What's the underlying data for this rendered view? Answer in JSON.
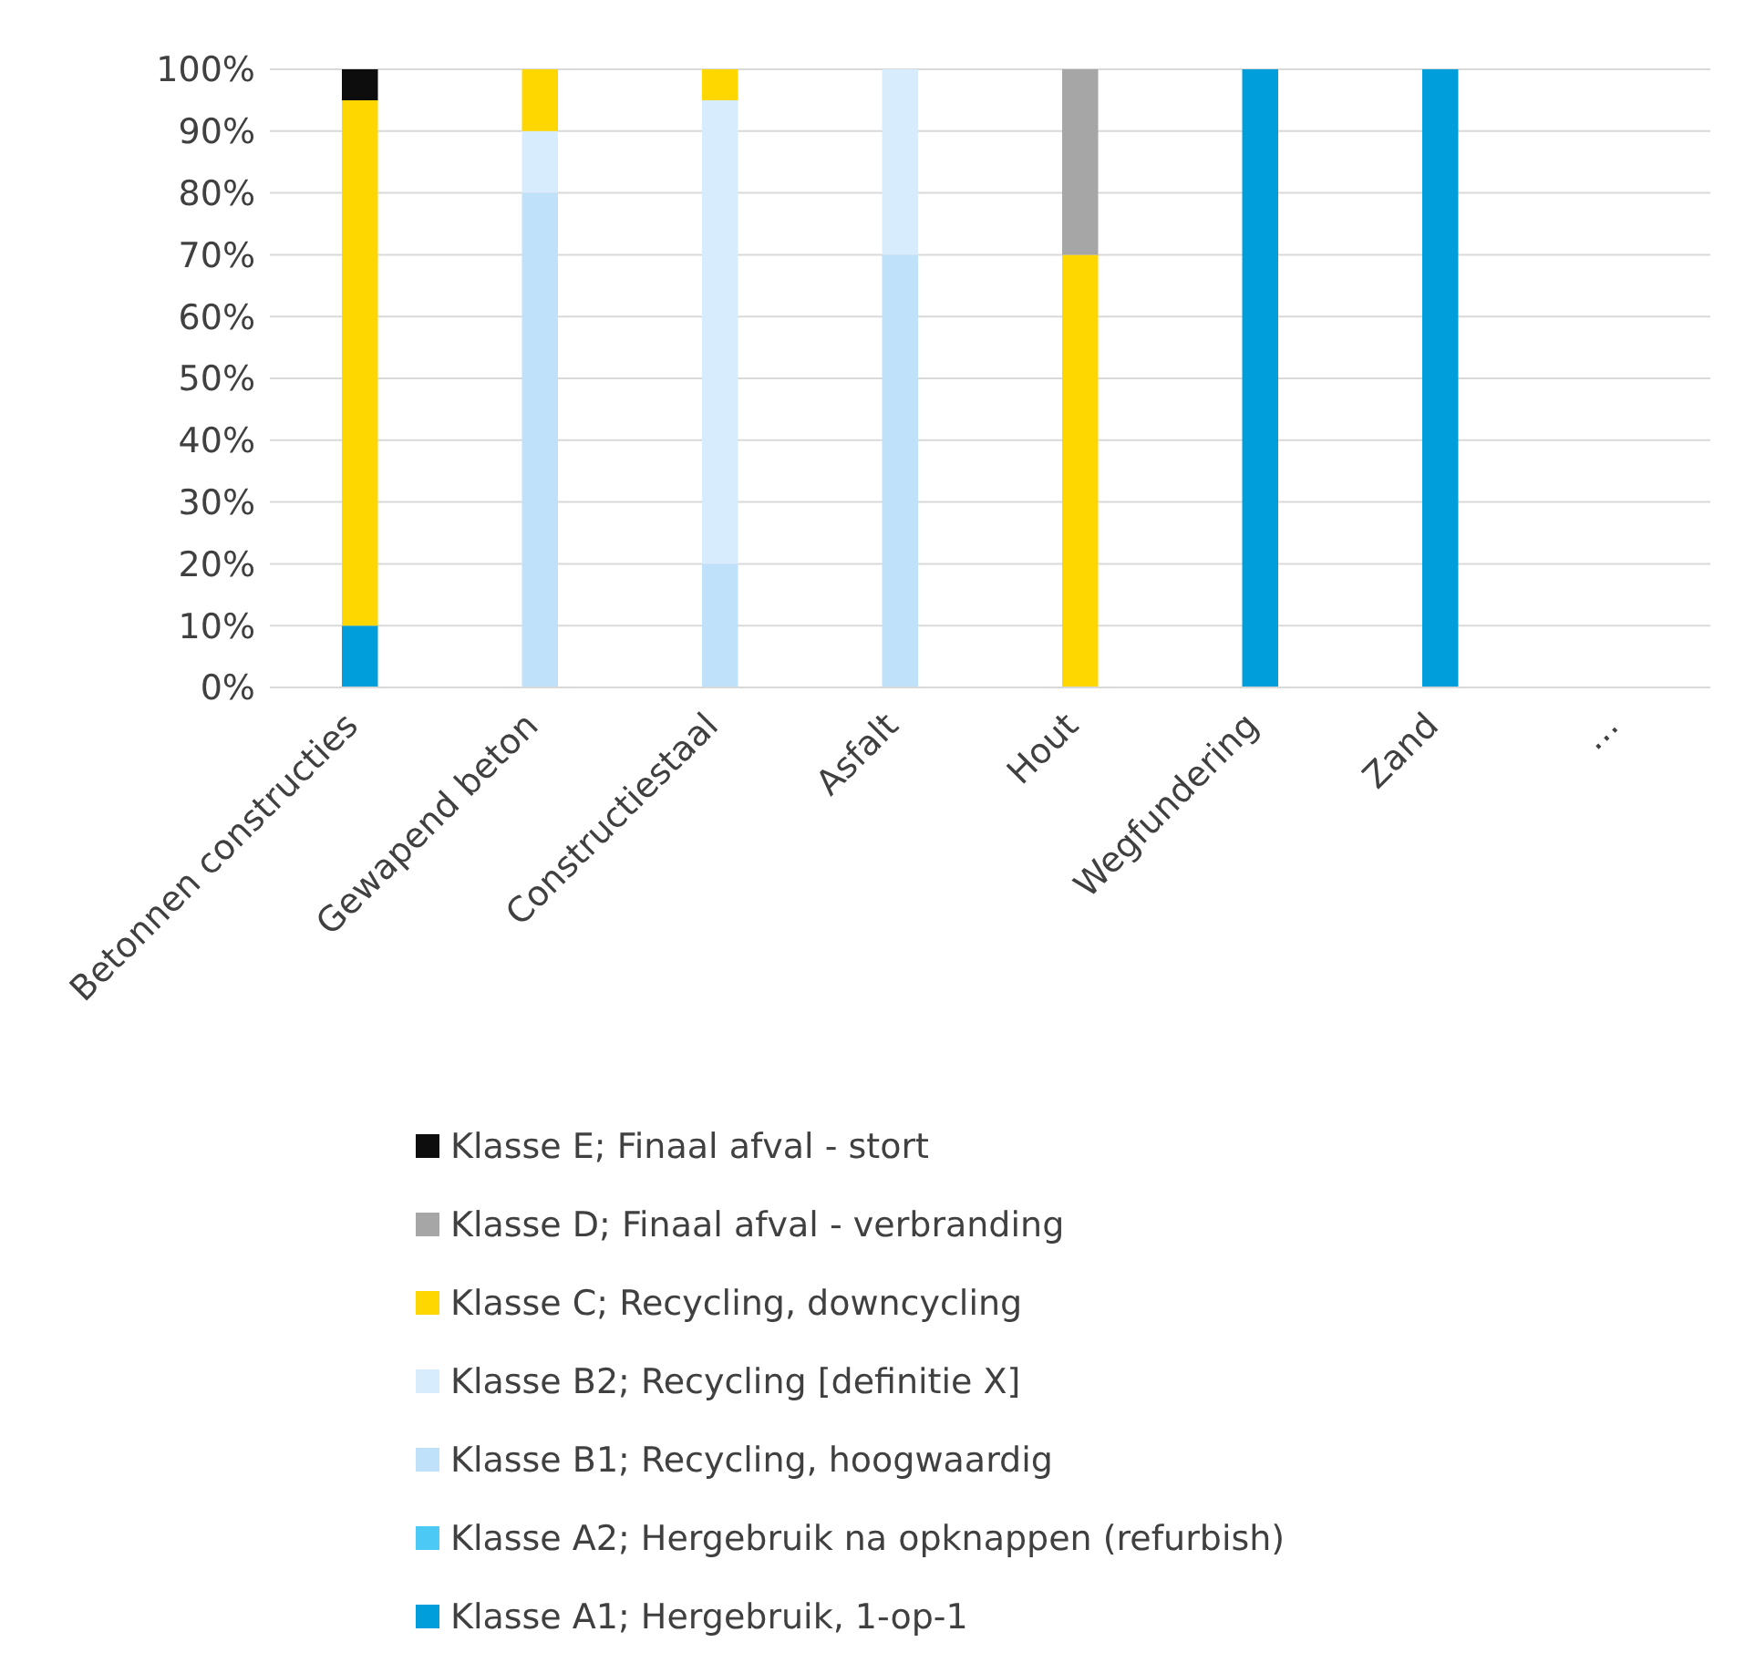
{
  "chart_data": {
    "type": "bar",
    "stacked": true,
    "categories": [
      "Betonnen constructies",
      "Gewapend beton",
      "Constructiestaal",
      "Asfalt",
      "Hout",
      "Wegfundering",
      "Zand",
      "…"
    ],
    "series": [
      {
        "name": "Klasse A1; Hergebruik, 1-op-1",
        "color": "#009fdb",
        "values": [
          10,
          0,
          0,
          0,
          0,
          100,
          100,
          0
        ]
      },
      {
        "name": "Klasse A2; Hergebruik na opknappen (refurbish)",
        "color": "#4dc9f6",
        "values": [
          0,
          0,
          0,
          0,
          0,
          0,
          0,
          0
        ]
      },
      {
        "name": "Klasse B1; Recycling, hoogwaardig",
        "color": "#bfe2fa",
        "values": [
          0,
          80,
          20,
          70,
          0,
          0,
          0,
          0
        ]
      },
      {
        "name": "Klasse B2; Recycling [definitie X]",
        "color": "#d7ecfc",
        "values": [
          0,
          10,
          75,
          30,
          0,
          0,
          0,
          0
        ]
      },
      {
        "name": "Klasse C; Recycling, downcycling",
        "color": "#ffd700",
        "values": [
          85,
          10,
          5,
          0,
          70,
          0,
          0,
          0
        ]
      },
      {
        "name": "Klasse D; Finaal afval - verbranding",
        "color": "#a6a6a6",
        "values": [
          0,
          0,
          0,
          0,
          30,
          0,
          0,
          0
        ]
      },
      {
        "name": "Klasse E; Finaal afval - stort",
        "color": "#0d0d0d",
        "values": [
          5,
          0,
          0,
          0,
          0,
          0,
          0,
          0
        ]
      }
    ],
    "ylim": [
      0,
      100
    ],
    "yticks": [
      {
        "value": 0,
        "label": "0%"
      },
      {
        "value": 10,
        "label": "10%"
      },
      {
        "value": 20,
        "label": "20%"
      },
      {
        "value": 30,
        "label": "30%"
      },
      {
        "value": 40,
        "label": "40%"
      },
      {
        "value": 50,
        "label": "50%"
      },
      {
        "value": 60,
        "label": "60%"
      },
      {
        "value": 70,
        "label": "70%"
      },
      {
        "value": 80,
        "label": "80%"
      },
      {
        "value": 90,
        "label": "90%"
      },
      {
        "value": 100,
        "label": "100%"
      }
    ],
    "grid": "y",
    "legend": "bottom"
  }
}
